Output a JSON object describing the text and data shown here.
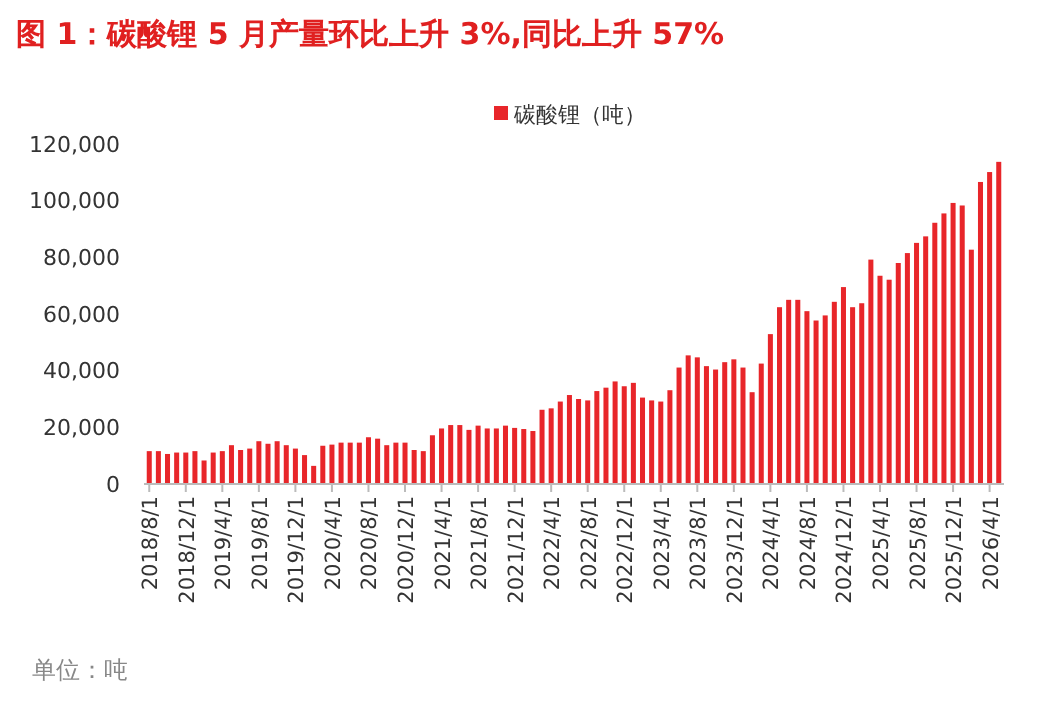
{
  "chart_data": {
    "type": "bar",
    "title": "图 1：碳酸锂 5 月产量环比上升 3%,同比上升 57%",
    "categories": [
      "2018/8/1",
      null,
      null,
      null,
      "2018/12/1",
      null,
      null,
      null,
      "2019/4/1",
      null,
      null,
      null,
      "2019/8/1",
      null,
      null,
      null,
      "2019/12/1",
      null,
      null,
      null,
      "2020/4/1",
      null,
      null,
      null,
      "2020/8/1",
      null,
      null,
      null,
      "2020/12/1",
      null,
      null,
      null,
      "2021/4/1",
      null,
      null,
      null,
      "2021/8/1",
      null,
      null,
      null,
      "2021/12/1",
      null,
      null,
      null,
      "2022/4/1",
      null,
      null,
      null,
      "2022/8/1",
      null,
      null,
      null,
      "2022/12/1",
      null,
      null,
      null,
      "2023/4/1",
      null,
      null,
      null,
      "2023/8/1",
      null,
      null,
      null,
      "2023/12/1",
      null,
      null,
      null,
      "2024/4/1",
      null,
      null,
      null,
      "2024/8/1",
      null,
      null,
      null,
      "2024/12/1",
      null,
      null,
      null,
      "2025/4/1",
      null,
      null,
      null,
      "2025/8/1",
      null,
      null,
      null,
      "2025/12/1",
      null,
      null,
      null,
      "2026/4/1",
      null
    ],
    "series": [
      {
        "name": "碳酸锂（吨）",
        "color": "#e8262a",
        "values": [
          11600,
          11600,
          10600,
          11100,
          11100,
          11600,
          8300,
          11100,
          11600,
          13700,
          12000,
          12500,
          15100,
          14200,
          15100,
          13700,
          12500,
          10200,
          6400,
          13500,
          13900,
          14600,
          14600,
          14600,
          16500,
          16000,
          13700,
          14600,
          14600,
          12000,
          11600,
          17200,
          19600,
          20800,
          20800,
          19100,
          20600,
          19600,
          19600,
          20600,
          19800,
          19400,
          18700,
          26200,
          26700,
          29100,
          31400,
          30000,
          29500,
          32800,
          34000,
          36200,
          34500,
          35700,
          30500,
          29500,
          29100,
          33100,
          41100,
          45400,
          44700,
          41600,
          40400,
          43000,
          44000,
          41100,
          32400,
          42500,
          52900,
          62400,
          65000,
          65000,
          61000,
          57700,
          59500,
          64300,
          69500,
          62400,
          63800,
          79200,
          73500,
          72100,
          78000,
          81500,
          85100,
          87400,
          92200,
          95500,
          99200,
          98300,
          82700,
          106600,
          110100,
          113700
        ]
      }
    ],
    "ylim": [
      0,
      120000
    ],
    "yticks": [
      {
        "value": 0,
        "label": "0"
      },
      {
        "value": 20000,
        "label": "20,000"
      },
      {
        "value": 40000,
        "label": "40,000"
      },
      {
        "value": 60000,
        "label": "60,000"
      },
      {
        "value": 80000,
        "label": "80,000"
      },
      {
        "value": 100000,
        "label": "100,000"
      },
      {
        "value": 120000,
        "label": "120,000"
      }
    ],
    "legend": "top",
    "grid": false,
    "annotations": [
      "单位：吨"
    ]
  }
}
